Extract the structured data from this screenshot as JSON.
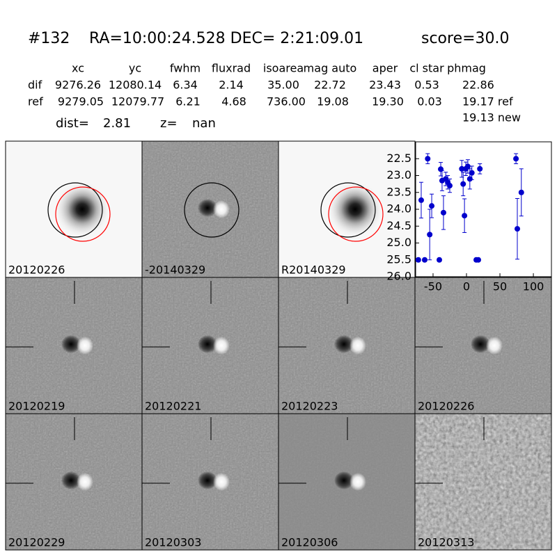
{
  "header": {
    "id": "#132",
    "coords": "RA=10:00:24.528 DEC= 2:21:09.01",
    "score": "score=30.0",
    "columns": [
      "xc",
      "yc",
      "fwhm",
      "fluxrad",
      "isoarea",
      "mag auto",
      "aper",
      "cl star",
      "phmag"
    ],
    "rows": [
      [
        "dif",
        "9276.26",
        "12080.14",
        "6.34",
        "2.14",
        "35.00",
        "22.72",
        "23.43",
        "0.53",
        "22.86"
      ],
      [
        "ref",
        "9279.05",
        "12079.77",
        "6.21",
        "4.68",
        "736.00",
        "19.08",
        "19.30",
        "0.03",
        "19.17 ref"
      ]
    ],
    "phmag_new": "19.13 new",
    "dist_label": "dist=",
    "dist": "2.81",
    "z_label": "z=",
    "z": "nan"
  },
  "panels": [
    {
      "label": "20120226"
    },
    {
      "label": "-20140329"
    },
    {
      "label": "R20140329"
    },
    {
      "label": "20120219"
    },
    {
      "label": "20120221"
    },
    {
      "label": "20120223"
    },
    {
      "label": "20120226",
      "color": "#ff0000"
    },
    {
      "label": "20120229"
    },
    {
      "label": "20120303"
    },
    {
      "label": "20120306"
    },
    {
      "label": "20120313"
    }
  ],
  "chart_data": {
    "type": "scatter",
    "color": "#0000cc",
    "x": [
      -72,
      -62.5,
      -67.7,
      -58,
      -55,
      -52,
      -40.6,
      -38.5,
      -36.5,
      -34.4,
      -31,
      -28,
      -25,
      -7,
      -5,
      -3,
      -1,
      2,
      5,
      8,
      14.6,
      17.7,
      20,
      74,
      76,
      82
    ],
    "values": [
      25.5,
      25.5,
      23.73,
      22.5,
      24.75,
      23.9,
      25.5,
      22.81,
      23.15,
      24.1,
      23.1,
      23.2,
      23.3,
      22.8,
      23.25,
      24.19,
      22.8,
      22.73,
      23.1,
      22.92,
      25.5,
      25.5,
      22.8,
      22.5,
      24.58,
      23.5
    ],
    "errors": [
      0,
      0,
      0.53,
      0.15,
      0.75,
      0.35,
      0,
      0.2,
      0.3,
      0.5,
      0.2,
      0.2,
      0.2,
      0.25,
      0.35,
      0.5,
      0.2,
      0.2,
      0.3,
      0.2,
      0,
      0,
      0.15,
      0.15,
      0.9,
      0.7
    ],
    "xlim": [
      -76,
      127
    ],
    "ylim": [
      26,
      22
    ],
    "xticks": [
      -50,
      0,
      50,
      100
    ],
    "yticks": [
      22.5,
      {
        "value": 23,
        "label": "23.0"
      },
      23.5,
      {
        "value": 24,
        "label": "24.0"
      },
      24.5,
      {
        "value": 25,
        "label": "25.0"
      },
      25.5,
      {
        "value": 26,
        "label": "26.0"
      }
    ]
  }
}
